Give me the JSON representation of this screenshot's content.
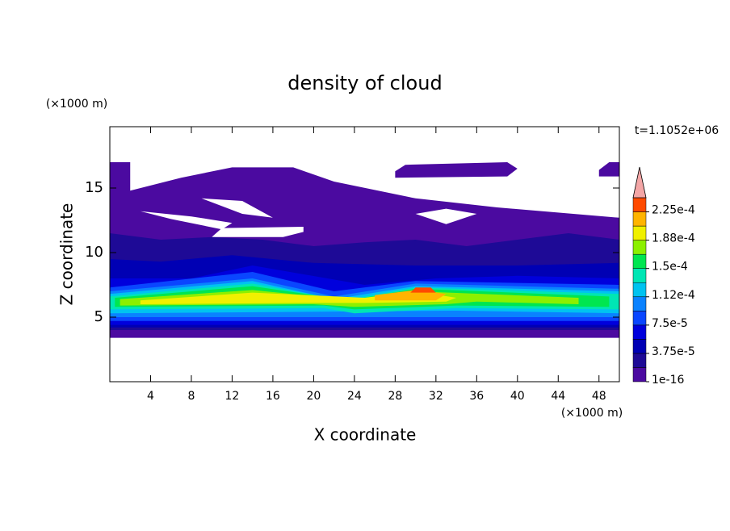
{
  "chart_data": {
    "type": "contour",
    "title": "density of cloud",
    "x_label": "X coordinate",
    "y_label": "Z coordinate",
    "x_unit": "(×1000 m)",
    "y_unit": "(×1000 m)",
    "annotation": "t=1.1052e+06",
    "xlim": [
      0,
      50
    ],
    "ylim": [
      0,
      19.75
    ],
    "xticks": [
      4,
      8,
      12,
      16,
      20,
      24,
      28,
      32,
      36,
      40,
      44,
      48
    ],
    "yticks": [
      5,
      10,
      15
    ],
    "colorbar": {
      "lim": [
        0,
        0.00024375
      ],
      "ticks": [
        {
          "value": 1e-16,
          "label": "1e-16"
        },
        {
          "value": 3.75e-05,
          "label": "3.75e-5"
        },
        {
          "value": 7.5e-05,
          "label": "7.5e-5"
        },
        {
          "value": 0.0001125,
          "label": "1.12e-4"
        },
        {
          "value": 0.00015,
          "label": "1.5e-4"
        },
        {
          "value": 0.0001875,
          "label": "1.88e-4"
        },
        {
          "value": 0.000225,
          "label": "2.25e-4"
        }
      ],
      "colors": [
        "#4b0aa0",
        "#1e0a96",
        "#0000b4",
        "#0000dc",
        "#0a46ff",
        "#0a82ff",
        "#00c3f0",
        "#00e6b4",
        "#00e650",
        "#8cf000",
        "#f0f000",
        "#ffb400",
        "#ff4a00"
      ],
      "extend_color": "#f4a6a6"
    }
  }
}
